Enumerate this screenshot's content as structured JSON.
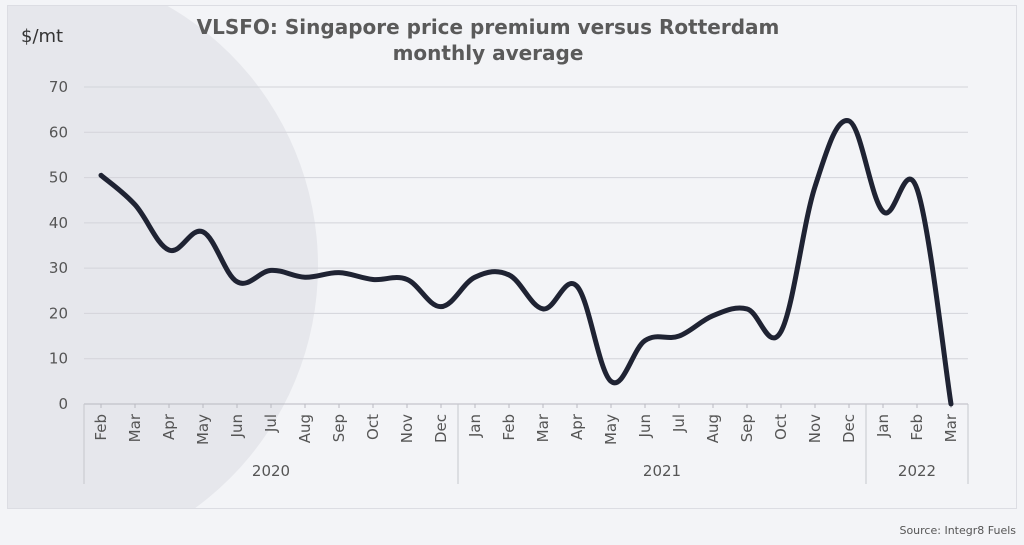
{
  "source": "Source: Integr8 Fuels",
  "chart_data": {
    "type": "line",
    "title": "VLSFO: Singapore price premium versus Rotterdam monthly average",
    "title_lines": [
      "VLSFO: Singapore price premium versus Rotterdam",
      "monthly average"
    ],
    "ylabel": "$/mt",
    "xlabel": "",
    "ylim": [
      0,
      70
    ],
    "yticks": [
      0,
      10,
      20,
      30,
      40,
      50,
      60,
      70
    ],
    "grid": true,
    "line_color": "#1f2333",
    "categories": [
      "Feb",
      "Mar",
      "Apr",
      "May",
      "Jun",
      "Jul",
      "Aug",
      "Sep",
      "Oct",
      "Nov",
      "Dec",
      "Jan",
      "Feb",
      "Mar",
      "Apr",
      "May",
      "Jun",
      "Jul",
      "Aug",
      "Sep",
      "Oct",
      "Nov",
      "Dec",
      "Jan",
      "Feb",
      "Mar"
    ],
    "groups": [
      {
        "label": "2020",
        "count": 11
      },
      {
        "label": "2021",
        "count": 12
      },
      {
        "label": "2022",
        "count": 3
      }
    ],
    "series": [
      {
        "values": [
          50.5,
          44,
          34,
          38,
          27,
          29.5,
          28,
          29,
          27.5,
          27.5,
          21.5,
          28,
          28.5,
          21,
          26,
          5,
          14,
          15,
          19.5,
          21,
          16,
          48,
          62.5,
          42.5,
          47.5,
          0
        ]
      }
    ]
  }
}
